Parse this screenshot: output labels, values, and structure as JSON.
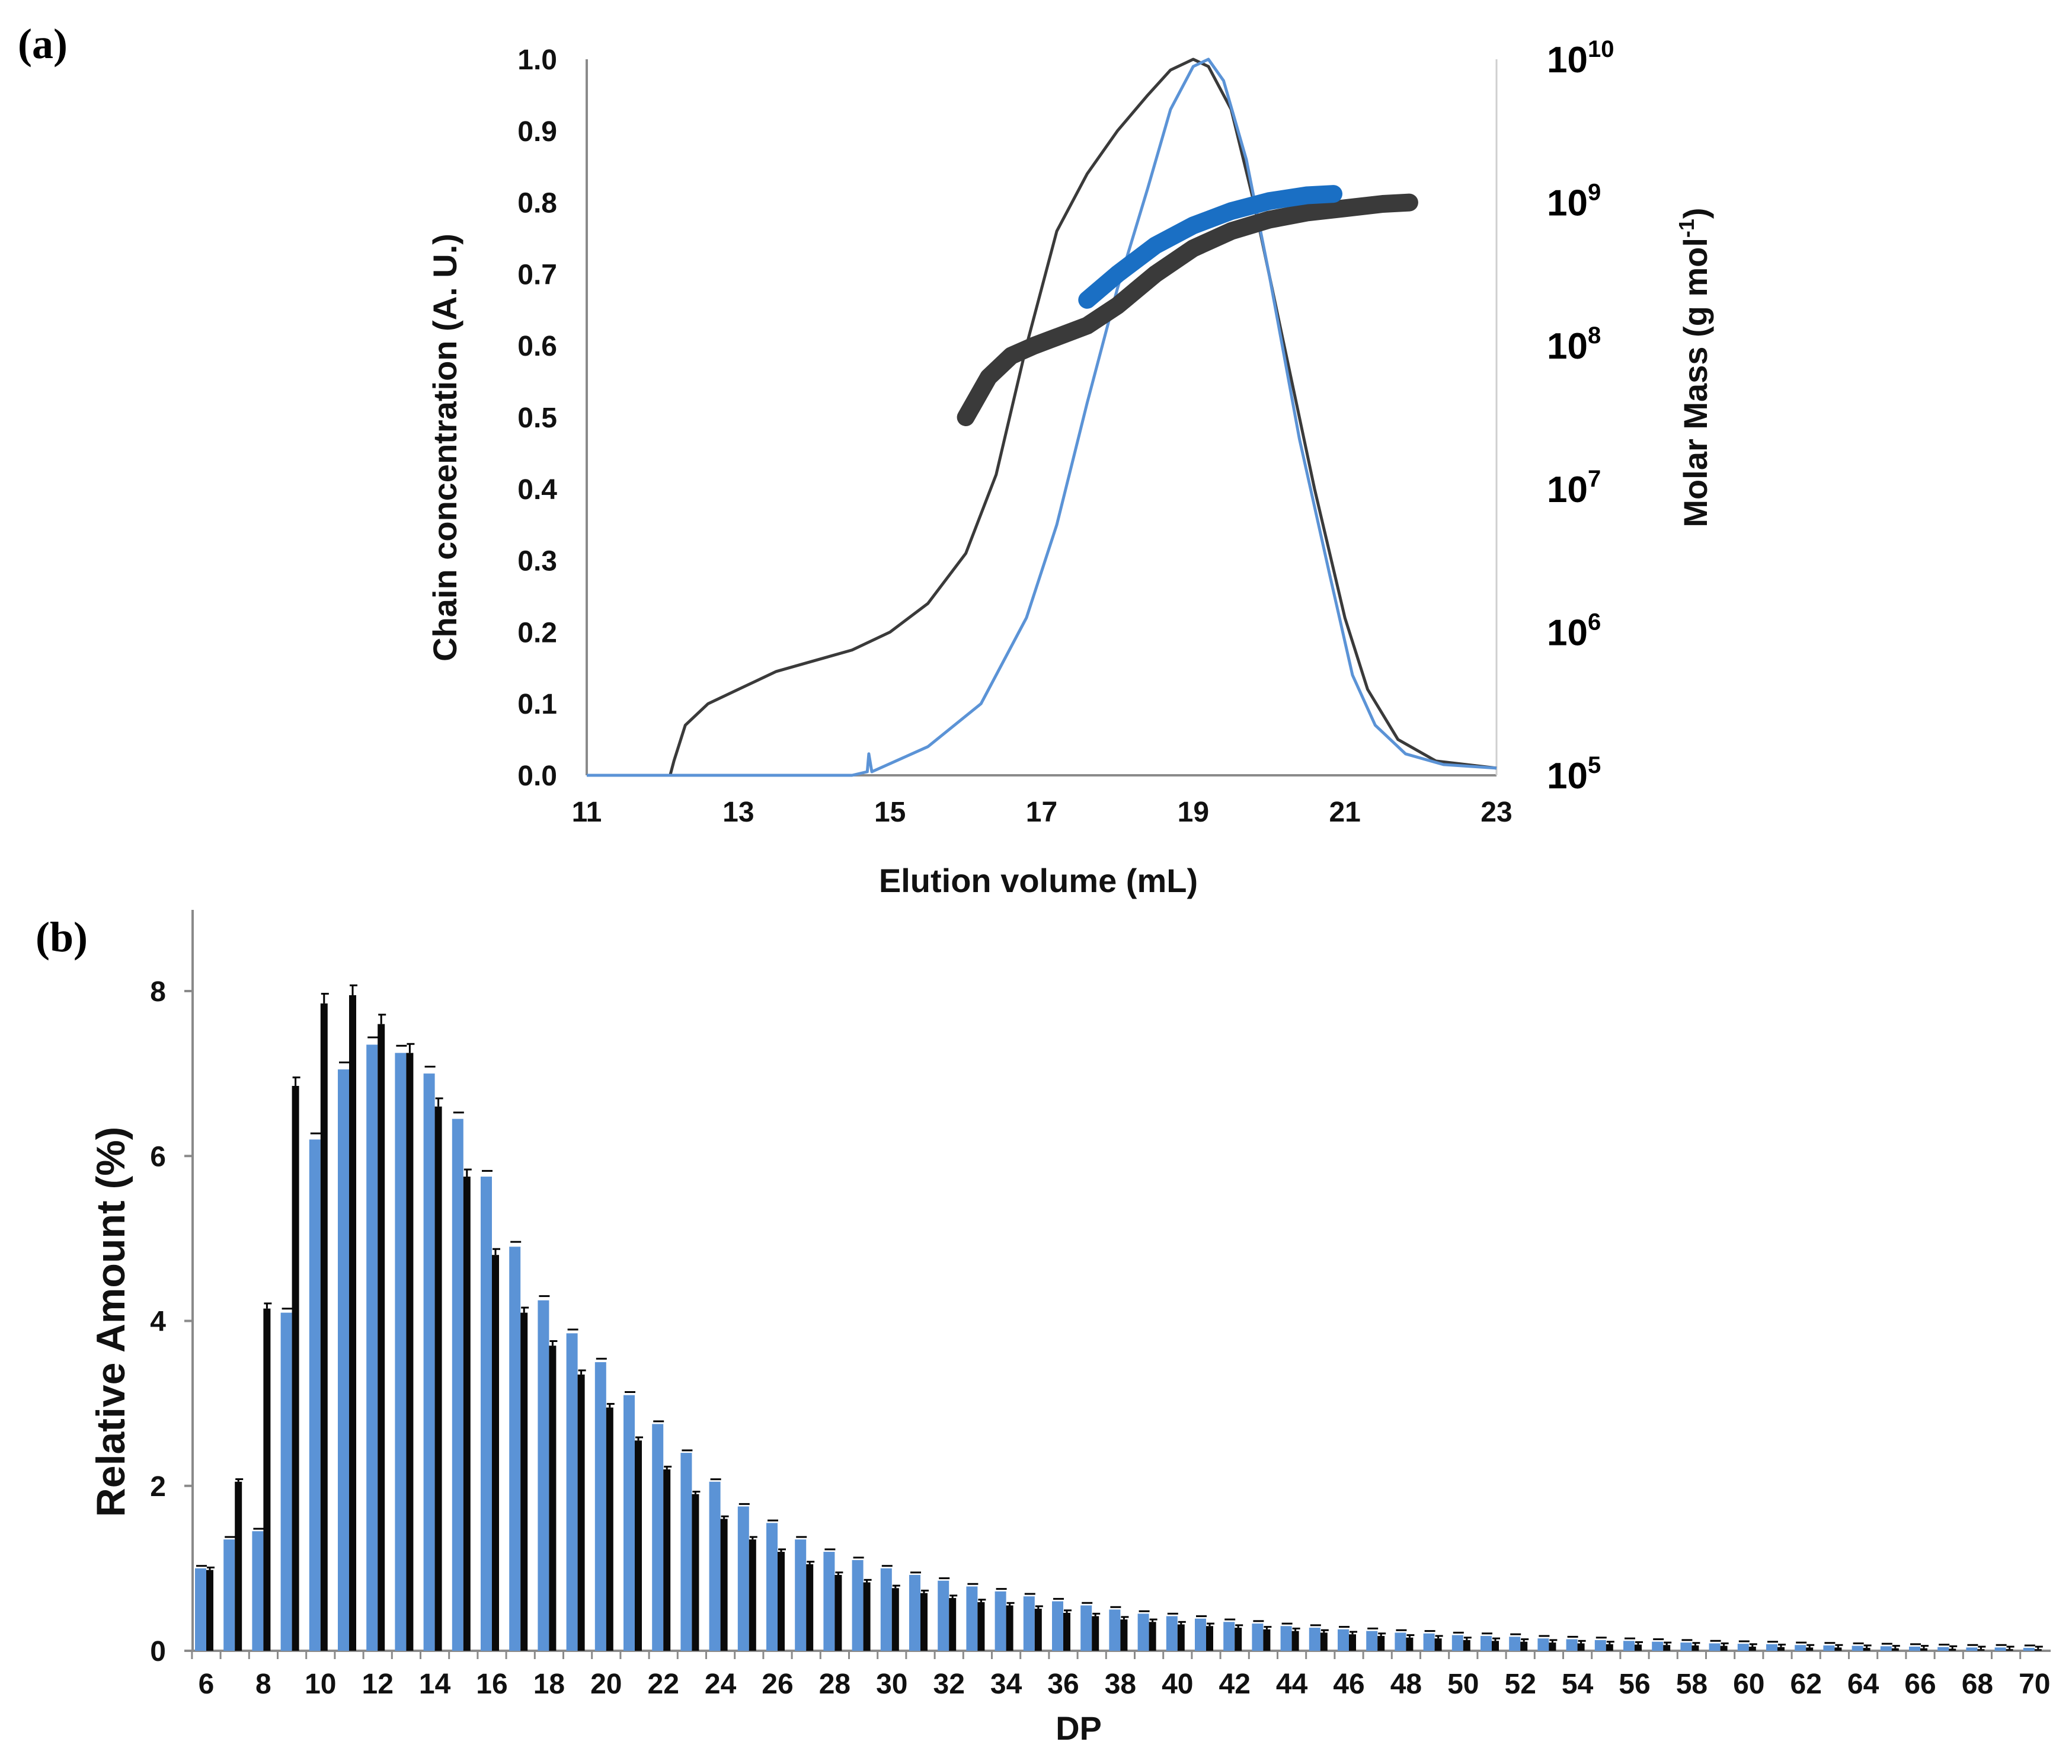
{
  "colors": {
    "blue": "#5b93d6",
    "blue_dark": "#1a6fc4",
    "black": "#3a3a3a",
    "bar_black": "#0a0a0a",
    "axis": "#8a8a8a"
  },
  "chart_data": [
    {
      "panel": "(a)",
      "type": "line",
      "xlabel": "Elution volume (mL)",
      "ylabel": "Chain concentration (A. U.)",
      "ylabel_right": "Molar Mass (g mol-1)",
      "xlim": [
        11,
        23
      ],
      "ylim": [
        0,
        1.0
      ],
      "xticks": [
        "11",
        "13",
        "15",
        "17",
        "19",
        "21",
        "23"
      ],
      "yticks": [
        "0.0",
        "0.1",
        "0.2",
        "0.3",
        "0.4",
        "0.5",
        "0.6",
        "0.7",
        "0.8",
        "0.9",
        "1.0"
      ],
      "right_ticks": [
        {
          "base": "10",
          "exp": "5"
        },
        {
          "base": "10",
          "exp": "6"
        },
        {
          "base": "10",
          "exp": "7"
        },
        {
          "base": "10",
          "exp": "8"
        },
        {
          "base": "10",
          "exp": "9"
        },
        {
          "base": "10",
          "exp": "10"
        }
      ],
      "right_log_range": [
        5,
        10
      ],
      "series": [
        {
          "name": "black concentration",
          "color": "#3a3a3a",
          "points": [
            [
              11,
              0
            ],
            [
              12.1,
              0
            ],
            [
              12.15,
              0.02
            ],
            [
              12.3,
              0.07
            ],
            [
              12.6,
              0.1
            ],
            [
              13,
              0.12
            ],
            [
              13.5,
              0.145
            ],
            [
              14,
              0.16
            ],
            [
              14.5,
              0.175
            ],
            [
              15,
              0.2
            ],
            [
              15.5,
              0.24
            ],
            [
              16,
              0.31
            ],
            [
              16.4,
              0.42
            ],
            [
              16.8,
              0.6
            ],
            [
              17.2,
              0.76
            ],
            [
              17.6,
              0.84
            ],
            [
              18,
              0.9
            ],
            [
              18.4,
              0.95
            ],
            [
              18.7,
              0.985
            ],
            [
              19,
              1.0
            ],
            [
              19.2,
              0.99
            ],
            [
              19.5,
              0.93
            ],
            [
              19.8,
              0.8
            ],
            [
              20.2,
              0.6
            ],
            [
              20.6,
              0.4
            ],
            [
              21,
              0.22
            ],
            [
              21.3,
              0.12
            ],
            [
              21.7,
              0.05
            ],
            [
              22.2,
              0.02
            ],
            [
              23,
              0.01
            ]
          ]
        },
        {
          "name": "blue concentration",
          "color": "#5b93d6",
          "points": [
            [
              11,
              0
            ],
            [
              14.5,
              0
            ],
            [
              14.7,
              0.005
            ],
            [
              14.72,
              0.03
            ],
            [
              14.76,
              0.005
            ],
            [
              15.5,
              0.04
            ],
            [
              16.2,
              0.1
            ],
            [
              16.8,
              0.22
            ],
            [
              17.2,
              0.35
            ],
            [
              17.6,
              0.52
            ],
            [
              18,
              0.68
            ],
            [
              18.4,
              0.82
            ],
            [
              18.7,
              0.93
            ],
            [
              19,
              0.99
            ],
            [
              19.2,
              1.0
            ],
            [
              19.4,
              0.97
            ],
            [
              19.7,
              0.86
            ],
            [
              20,
              0.7
            ],
            [
              20.4,
              0.47
            ],
            [
              20.8,
              0.28
            ],
            [
              21.1,
              0.14
            ],
            [
              21.4,
              0.07
            ],
            [
              21.8,
              0.03
            ],
            [
              22.3,
              0.015
            ],
            [
              23,
              0.01
            ]
          ]
        },
        {
          "name": "black molar mass",
          "color": "#3a3a3a",
          "marker": "dots",
          "log_mass": [
            [
              16,
              7.5
            ],
            [
              16.3,
              7.78
            ],
            [
              16.6,
              7.93
            ],
            [
              16.9,
              8.0
            ],
            [
              17.2,
              8.06
            ],
            [
              17.6,
              8.14
            ],
            [
              18,
              8.28
            ],
            [
              18.5,
              8.5
            ],
            [
              19,
              8.68
            ],
            [
              19.5,
              8.8
            ],
            [
              20,
              8.88
            ],
            [
              20.5,
              8.93
            ],
            [
              21,
              8.96
            ],
            [
              21.5,
              8.99
            ],
            [
              21.85,
              9.0
            ]
          ]
        },
        {
          "name": "blue molar mass",
          "color": "#1a6fc4",
          "marker": "dots",
          "log_mass": [
            [
              17.6,
              8.32
            ],
            [
              18,
              8.5
            ],
            [
              18.5,
              8.7
            ],
            [
              19,
              8.84
            ],
            [
              19.5,
              8.94
            ],
            [
              20,
              9.01
            ],
            [
              20.5,
              9.05
            ],
            [
              20.85,
              9.06
            ]
          ]
        }
      ]
    },
    {
      "panel": "(b)",
      "type": "bar",
      "xlabel": "DP",
      "ylabel": "Relative Amount (%)",
      "ylim": [
        0,
        9
      ],
      "yticks": [
        "0",
        "2",
        "4",
        "6",
        "8"
      ],
      "categories": [
        6,
        7,
        8,
        9,
        10,
        11,
        12,
        13,
        14,
        15,
        16,
        17,
        18,
        19,
        20,
        21,
        22,
        23,
        24,
        25,
        26,
        27,
        28,
        29,
        30,
        31,
        32,
        33,
        34,
        35,
        36,
        37,
        38,
        39,
        40,
        41,
        42,
        43,
        44,
        45,
        46,
        47,
        48,
        49,
        50,
        51,
        52,
        53,
        54,
        55,
        56,
        57,
        58,
        59,
        60,
        61,
        62,
        63,
        64,
        65,
        66,
        67,
        68,
        69,
        70
      ],
      "xtick_labels": [
        "6",
        "8",
        "10",
        "12",
        "14",
        "16",
        "18",
        "20",
        "22",
        "24",
        "26",
        "28",
        "30",
        "32",
        "34",
        "36",
        "38",
        "40",
        "42",
        "44",
        "46",
        "48",
        "50",
        "52",
        "54",
        "56",
        "58",
        "60",
        "62",
        "64",
        "66",
        "68",
        "70"
      ],
      "series": [
        {
          "name": "blue",
          "color": "#5b93d6",
          "values": [
            1.0,
            1.35,
            1.45,
            4.1,
            6.2,
            7.05,
            7.35,
            7.25,
            7.0,
            6.45,
            5.75,
            4.9,
            4.25,
            3.85,
            3.5,
            3.1,
            2.75,
            2.4,
            2.05,
            1.75,
            1.55,
            1.35,
            1.2,
            1.1,
            1.0,
            0.92,
            0.85,
            0.78,
            0.72,
            0.66,
            0.6,
            0.55,
            0.5,
            0.45,
            0.42,
            0.39,
            0.35,
            0.33,
            0.3,
            0.28,
            0.26,
            0.24,
            0.22,
            0.21,
            0.19,
            0.18,
            0.17,
            0.15,
            0.14,
            0.13,
            0.12,
            0.11,
            0.1,
            0.09,
            0.085,
            0.08,
            0.07,
            0.065,
            0.06,
            0.055,
            0.05,
            0.045,
            0.04,
            0.04,
            0.035
          ]
        },
        {
          "name": "black",
          "color": "#0a0a0a",
          "values": [
            0.98,
            2.05,
            4.15,
            6.85,
            7.85,
            7.95,
            7.6,
            7.25,
            6.6,
            5.75,
            4.8,
            4.1,
            3.7,
            3.35,
            2.95,
            2.55,
            2.2,
            1.9,
            1.6,
            1.35,
            1.2,
            1.05,
            0.92,
            0.83,
            0.76,
            0.7,
            0.64,
            0.59,
            0.55,
            0.51,
            0.46,
            0.42,
            0.38,
            0.35,
            0.32,
            0.3,
            0.28,
            0.26,
            0.24,
            0.22,
            0.2,
            0.18,
            0.16,
            0.15,
            0.13,
            0.12,
            0.11,
            0.1,
            0.09,
            0.08,
            0.075,
            0.07,
            0.065,
            0.06,
            0.05,
            0.045,
            0.04,
            0.04,
            0.035,
            0.03,
            0.03,
            0.025,
            0.02,
            0.02,
            0.02
          ]
        }
      ]
    }
  ]
}
